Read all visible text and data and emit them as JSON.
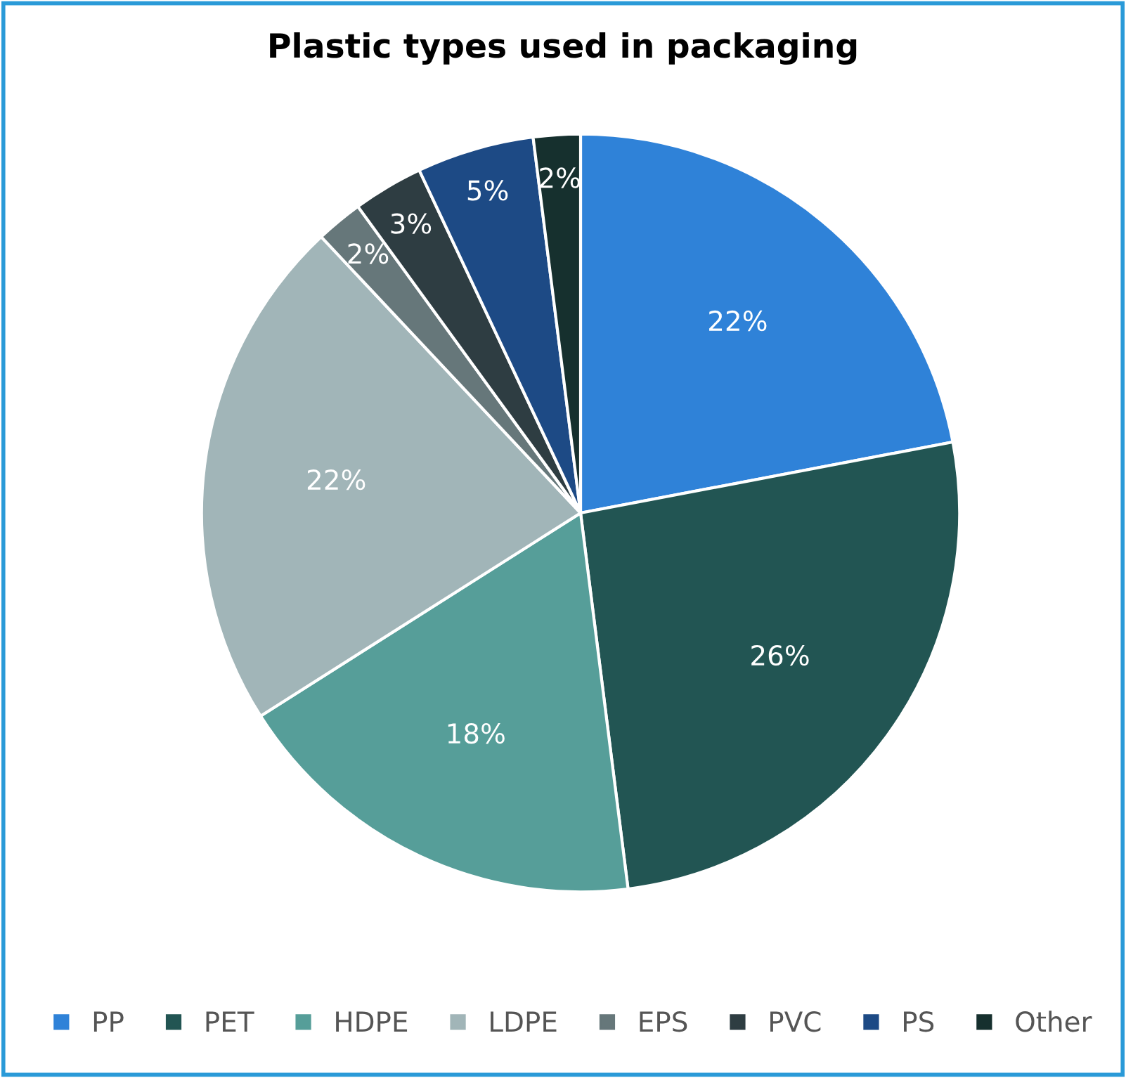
{
  "chart_data": {
    "type": "pie",
    "title": "Plastic types used in packaging",
    "categories": [
      "PP",
      "PET",
      "HDPE",
      "LDPE",
      "EPS",
      "PVC",
      "PS",
      "Other"
    ],
    "values": [
      22,
      26,
      18,
      22,
      2,
      3,
      5,
      2
    ],
    "colors": [
      "#2f82d8",
      "#225553",
      "#569e99",
      "#a1b5b8",
      "#66777a",
      "#2e3d42",
      "#1d4a85",
      "#16302e"
    ],
    "value_labels": [
      "22%",
      "26%",
      "18%",
      "22%",
      "2%",
      "3%",
      "5%",
      "2%"
    ],
    "legend": "bottom"
  }
}
